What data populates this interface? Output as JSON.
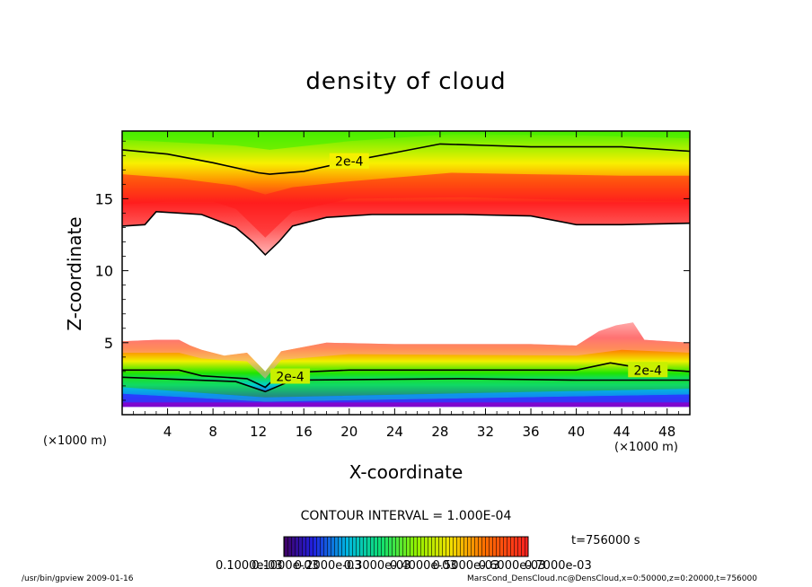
{
  "title": "density of cloud",
  "xlabel": "X-coordinate",
  "ylabel": "Z-coordinate",
  "x_unit_left": "(×1000 m)",
  "x_unit_right": "(×1000 m)",
  "contour_interval": "CONTOUR INTERVAL = 1.000E-04",
  "time_label": "t=756000 s",
  "footer_left": "/usr/bin/gpview  2009-01-16",
  "footer_right": "MarsCond_DensCloud.nc@DensCloud,x=0:50000,z=0:20000,t=756000",
  "colors": {
    "top_green": "#44ee00",
    "yellow": "#f8f000",
    "orange": "#ff8a00",
    "red": "#ff1c1c",
    "pink": "#ff9a9a",
    "green": "#1ee400",
    "cyan": "#00cfcf",
    "blue": "#1f44ff",
    "purple": "#8a00c8"
  },
  "chart_data": {
    "type": "heatmap",
    "variant": "filled contour",
    "x_ticks": [
      4,
      8,
      12,
      16,
      20,
      24,
      28,
      32,
      36,
      40,
      44,
      48
    ],
    "y_ticks": [
      5,
      10,
      15
    ],
    "xlim": [
      0,
      50
    ],
    "ylim": [
      0,
      19.7
    ],
    "contour_labels": [
      "2e-4",
      "2e-4",
      "2e-4"
    ],
    "upper_layer": {
      "bottom": [
        [
          0,
          13.1
        ],
        [
          2,
          13.2
        ],
        [
          3,
          14.1
        ],
        [
          7,
          13.9
        ],
        [
          10,
          13.0
        ],
        [
          11.5,
          12.0
        ],
        [
          12.6,
          11.1
        ],
        [
          13.8,
          12.0
        ],
        [
          15,
          13.1
        ],
        [
          18,
          13.7
        ],
        [
          22,
          13.9
        ],
        [
          30,
          13.9
        ],
        [
          36,
          13.8
        ],
        [
          40,
          13.2
        ],
        [
          44,
          13.2
        ],
        [
          50,
          13.3
        ]
      ],
      "red_bottom": [
        [
          0,
          14.6
        ],
        [
          4,
          14.8
        ],
        [
          8,
          14.8
        ],
        [
          10,
          14.3
        ],
        [
          12.6,
          12.3
        ],
        [
          15,
          14.1
        ],
        [
          20,
          15.0
        ],
        [
          30,
          15.1
        ],
        [
          40,
          14.9
        ],
        [
          50,
          14.8
        ]
      ],
      "red_top": [
        [
          0,
          16.7
        ],
        [
          5,
          16.4
        ],
        [
          10,
          15.9
        ],
        [
          12.6,
          15.3
        ],
        [
          15,
          15.8
        ],
        [
          20,
          16.2
        ],
        [
          29,
          16.8
        ],
        [
          36,
          16.7
        ],
        [
          44,
          16.6
        ],
        [
          50,
          16.6
        ]
      ],
      "contour_2e4": [
        [
          0,
          18.4
        ],
        [
          4,
          18.1
        ],
        [
          8,
          17.5
        ],
        [
          12,
          16.8
        ],
        [
          13,
          16.7
        ],
        [
          16,
          16.9
        ],
        [
          20,
          17.6
        ],
        [
          24,
          18.2
        ],
        [
          28,
          18.8
        ],
        [
          32,
          18.7
        ],
        [
          36,
          18.6
        ],
        [
          40,
          18.6
        ],
        [
          44,
          18.6
        ],
        [
          50,
          18.3
        ]
      ],
      "orange_top": [
        [
          0,
          19.1
        ],
        [
          10,
          18.7
        ],
        [
          13,
          18.4
        ],
        [
          20,
          19.0
        ],
        [
          29,
          19.5
        ],
        [
          40,
          19.4
        ],
        [
          50,
          19.2
        ]
      ]
    },
    "lower_layer": {
      "top": [
        [
          0,
          5.1
        ],
        [
          3,
          5.2
        ],
        [
          5,
          5.2
        ],
        [
          6,
          4.8
        ],
        [
          7,
          4.5
        ],
        [
          9,
          4.1
        ],
        [
          11,
          4.3
        ],
        [
          12.6,
          3.0
        ],
        [
          14,
          4.4
        ],
        [
          18,
          5.0
        ],
        [
          24,
          4.9
        ],
        [
          36,
          4.9
        ],
        [
          40,
          4.8
        ],
        [
          42,
          5.8
        ],
        [
          43.5,
          6.2
        ],
        [
          45,
          6.4
        ],
        [
          46,
          5.2
        ],
        [
          50,
          5.0
        ]
      ],
      "red_top": [
        [
          0,
          4.3
        ],
        [
          5,
          4.3
        ],
        [
          7,
          3.9
        ],
        [
          11,
          3.7
        ],
        [
          12.6,
          2.5
        ],
        [
          14,
          3.8
        ],
        [
          20,
          4.2
        ],
        [
          40,
          4.1
        ],
        [
          44,
          4.5
        ],
        [
          50,
          4.3
        ]
      ],
      "contour_2e4": [
        [
          0,
          3.1
        ],
        [
          5,
          3.1
        ],
        [
          7,
          2.7
        ],
        [
          11,
          2.5
        ],
        [
          12.6,
          1.9
        ],
        [
          14,
          2.9
        ],
        [
          20,
          3.1
        ],
        [
          30,
          3.1
        ],
        [
          40,
          3.1
        ],
        [
          43,
          3.6
        ],
        [
          46,
          3.2
        ],
        [
          50,
          3.0
        ]
      ],
      "green_top": [
        [
          0,
          2.6
        ],
        [
          10,
          2.3
        ],
        [
          12.6,
          1.6
        ],
        [
          15,
          2.4
        ],
        [
          30,
          2.5
        ],
        [
          40,
          2.4
        ],
        [
          50,
          2.4
        ]
      ],
      "cyan_top": [
        [
          0,
          1.9
        ],
        [
          12.6,
          1.2
        ],
        [
          50,
          1.8
        ]
      ],
      "blue_top": [
        [
          0,
          1.45
        ],
        [
          12.6,
          0.9
        ],
        [
          50,
          1.4
        ]
      ],
      "bottom": [
        [
          0,
          0.55
        ],
        [
          50,
          0.55
        ]
      ]
    },
    "colorbar": {
      "min": 0.0001,
      "max": 0.0007,
      "labels": [
        "0.1000e-03",
        "0.1000e-03",
        "0.2000e-03",
        "0.3000e-03",
        "0.4000e-03",
        "0.5000e-03",
        "0.6000e-03",
        "0.7000e-03"
      ],
      "label_positions": [
        0.02,
        0.13,
        0.26,
        0.41,
        0.55,
        0.68,
        0.82,
        0.96
      ]
    }
  }
}
